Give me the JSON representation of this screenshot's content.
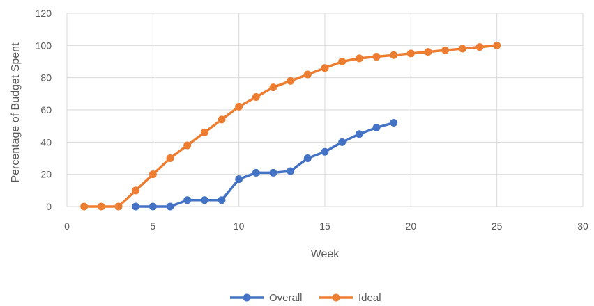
{
  "chart_data": {
    "type": "line",
    "title": "",
    "xlabel": "Week",
    "ylabel": "Percentage of Budget Spent",
    "xlim": [
      0,
      30
    ],
    "ylim": [
      0,
      120
    ],
    "xticks": [
      0,
      5,
      10,
      15,
      20,
      25,
      30
    ],
    "yticks": [
      0,
      20,
      40,
      60,
      80,
      100,
      120
    ],
    "grid": true,
    "legend_position": "bottom",
    "series": [
      {
        "name": "Overall",
        "color": "#4472C4",
        "x": [
          4,
          5,
          6,
          7,
          8,
          9,
          10,
          11,
          12,
          13,
          14,
          15,
          16,
          17,
          18,
          19
        ],
        "y": [
          0,
          0,
          0,
          4,
          4,
          4,
          17,
          21,
          21,
          22,
          30,
          34,
          40,
          45,
          49,
          52
        ]
      },
      {
        "name": "Ideal",
        "color": "#ED7D31",
        "x": [
          1,
          2,
          3,
          4,
          5,
          6,
          7,
          8,
          9,
          10,
          11,
          12,
          13,
          14,
          15,
          16,
          17,
          18,
          19,
          20,
          21,
          22,
          23,
          24,
          25
        ],
        "y": [
          0,
          0,
          0,
          10,
          20,
          30,
          38,
          46,
          54,
          62,
          68,
          74,
          78,
          82,
          86,
          90,
          92,
          93,
          94,
          95,
          96,
          97,
          98,
          99,
          100
        ]
      }
    ]
  }
}
